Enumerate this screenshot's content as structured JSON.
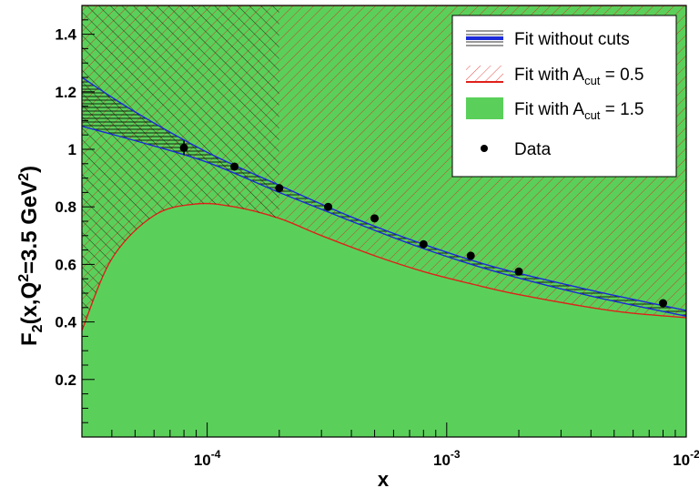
{
  "chart_data": {
    "type": "scatter",
    "xlabel": "x",
    "ylabel": "F_2(x,Q^2=3.5 GeV^2)",
    "xscale": "log",
    "xlim": [
      3e-05,
      0.01
    ],
    "ylim": [
      0.0,
      1.5
    ],
    "x_ticks": [
      {
        "value": 0.0001,
        "base": "10",
        "exp": "-4"
      },
      {
        "value": 0.001,
        "base": "10",
        "exp": "-3"
      },
      {
        "value": 0.01,
        "base": "10",
        "exp": "-2"
      }
    ],
    "y_ticks": [
      {
        "value": 0.2,
        "label": "0.2"
      },
      {
        "value": 0.4,
        "label": "0.4"
      },
      {
        "value": 0.6,
        "label": "0.6"
      },
      {
        "value": 0.8,
        "label": "0.8"
      },
      {
        "value": 1.0,
        "label": "1"
      },
      {
        "value": 1.2,
        "label": "1.2"
      },
      {
        "value": 1.4,
        "label": "1.4"
      }
    ],
    "legend_position": "top-right",
    "legend": [
      {
        "key": "nocuts",
        "label": "Fit without cuts",
        "sub": "",
        "suffix": ""
      },
      {
        "key": "cut05",
        "label": "Fit with A",
        "sub": "cut",
        "suffix": " = 0.5"
      },
      {
        "key": "cut15",
        "label": "Fit with A",
        "sub": "cut",
        "suffix": " = 1.5"
      },
      {
        "key": "data",
        "label": "Data",
        "sub": "",
        "suffix": ""
      }
    ],
    "colors": {
      "nocuts": "#1a2ad8",
      "cut05": "#e0201a",
      "cut15": "#5ad05a",
      "data": "#000000"
    },
    "series": [
      {
        "name": "Data",
        "type": "points",
        "x": [
          8e-05,
          0.00013,
          0.0002,
          0.00032,
          0.0005,
          0.0008,
          0.00126,
          0.002,
          0.008
        ],
        "y": [
          1.005,
          0.94,
          0.865,
          0.8,
          0.76,
          0.67,
          0.63,
          0.575,
          0.465
        ],
        "yerr": [
          0.025,
          0.008,
          0.008,
          0.008,
          0.008,
          0.008,
          0.008,
          0.008,
          0.008
        ]
      },
      {
        "name": "Fit with A_cut = 1.5",
        "type": "band",
        "x": [
          3e-05,
          5e-05,
          8e-05,
          0.00012,
          0.00018,
          0.00025,
          0.0004,
          0.0007,
          0.001,
          0.002,
          0.004,
          0.006,
          0.01
        ],
        "upper": [
          1.5,
          1.5,
          1.5,
          1.5,
          1.5,
          1.5,
          1.5,
          1.5,
          1.5,
          1.5,
          1.5,
          1.5,
          1.5
        ],
        "lower": [
          0.0,
          0.0,
          0.0,
          0.0,
          0.0,
          0.0,
          0.0,
          0.0,
          0.0,
          0.0,
          0.0,
          0.0,
          0.0
        ]
      },
      {
        "name": "Fit with A_cut = 0.5",
        "type": "band",
        "x": [
          3e-05,
          4e-05,
          6e-05,
          9e-05,
          0.00013,
          0.0002,
          0.0003,
          0.0005,
          0.0008,
          0.0013,
          0.002,
          0.004,
          0.006,
          0.01
        ],
        "upper": [
          1.5,
          1.5,
          1.5,
          1.5,
          1.5,
          1.5,
          1.5,
          1.5,
          1.5,
          1.5,
          1.5,
          1.5,
          1.5,
          1.5
        ],
        "lower": [
          0.37,
          0.62,
          0.77,
          0.81,
          0.8,
          0.76,
          0.7,
          0.63,
          0.575,
          0.53,
          0.495,
          0.45,
          0.43,
          0.415
        ]
      },
      {
        "name": "Fit without cuts",
        "type": "band",
        "x": [
          3e-05,
          5e-05,
          0.0001,
          0.0002,
          0.0004,
          0.0008,
          0.0016,
          0.004,
          0.01
        ],
        "upper": [
          1.25,
          1.13,
          0.99,
          0.875,
          0.765,
          0.67,
          0.59,
          0.51,
          0.44
        ],
        "lower": [
          1.08,
          1.03,
          0.955,
          0.85,
          0.75,
          0.655,
          0.575,
          0.49,
          0.42
        ]
      }
    ]
  }
}
